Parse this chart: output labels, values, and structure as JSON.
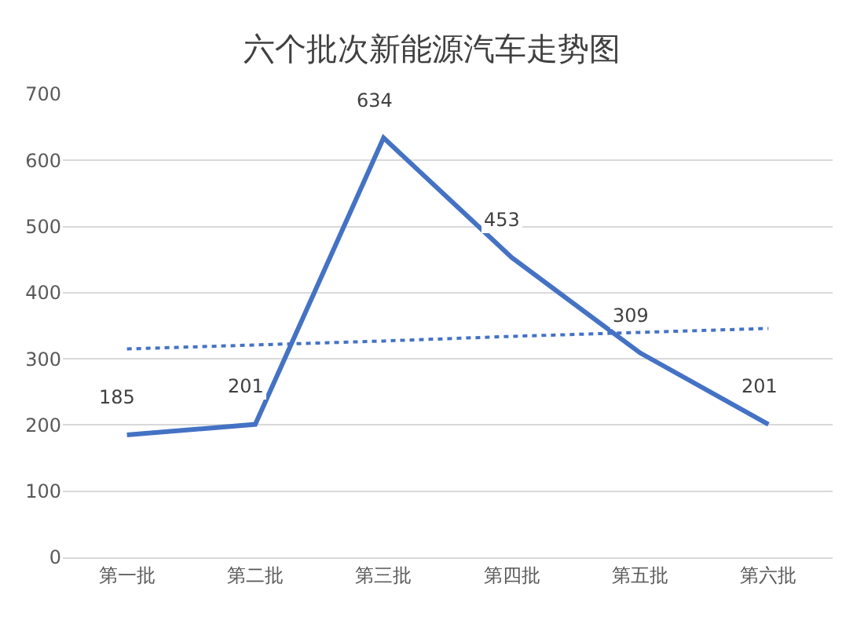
{
  "chart_data": {
    "type": "line",
    "title": "六个批次新能源汽车走势图",
    "categories": [
      "第一批",
      "第二批",
      "第三批",
      "第四批",
      "第五批",
      "第六批"
    ],
    "series": [
      {
        "color": "#4472c4",
        "values": [
          185,
          201,
          634,
          453,
          309,
          201
        ],
        "value_labels": [
          "185",
          "201",
          "634",
          "453",
          "309",
          "201"
        ],
        "line_style": "solid"
      },
      {
        "type": "line",
        "color": "#4472c4",
        "values": [
          315,
          321,
          327,
          334,
          340,
          346
        ],
        "line_style": "dotted"
      }
    ],
    "ylim": [
      0,
      700
    ],
    "yticks": [
      0,
      100,
      200,
      300,
      400,
      500,
      600,
      700
    ],
    "grid": "y",
    "marker": "none"
  }
}
